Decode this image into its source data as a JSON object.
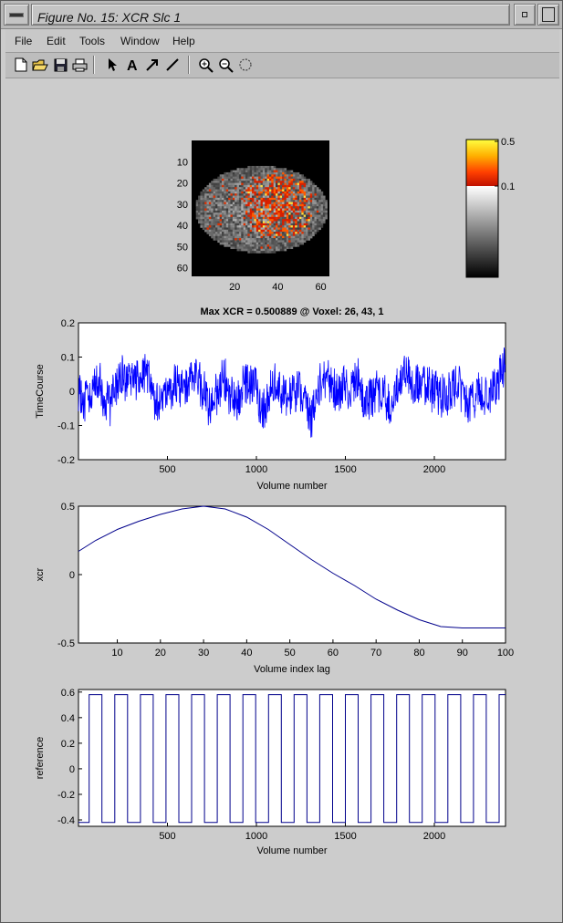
{
  "window": {
    "title": "Figure No. 15: XCR Slc 1"
  },
  "menu": {
    "file": "File",
    "edit": "Edit",
    "tools": "Tools",
    "window": "Window",
    "help": "Help"
  },
  "toolbar": {
    "icons": [
      "new-file-icon",
      "open-folder-icon",
      "save-icon",
      "print-icon",
      "arrow-select-icon",
      "text-tool-icon",
      "arrow-draw-icon",
      "line-draw-icon",
      "zoom-in-icon",
      "zoom-out-icon",
      "rotate-icon"
    ]
  },
  "brain_image": {
    "y_ticks": [
      "10",
      "20",
      "30",
      "40",
      "50",
      "60"
    ],
    "x_ticks": [
      "20",
      "40",
      "60"
    ]
  },
  "colorbar": {
    "tick_top": "0.5",
    "tick_mid": "0.1"
  },
  "chart_data": [
    {
      "type": "line",
      "title": "Max XCR = 0.500889 @ Voxel: 26, 43, 1",
      "xlabel": "Volume number",
      "ylabel": "TimeCourse",
      "xlim": [
        0,
        2400
      ],
      "ylim": [
        -0.2,
        0.2
      ],
      "x_ticks": [
        500,
        1000,
        1500,
        2000
      ],
      "y_ticks": [
        "0.2",
        "0.1",
        "0",
        "-0.1",
        "-0.2"
      ],
      "series": [
        {
          "values_note": "",
          "color": "#0000ff"
        }
      ]
    },
    {
      "type": "line",
      "xlabel": "Volume index lag",
      "ylabel": "xcr",
      "xlim": [
        1,
        100
      ],
      "ylim": [
        -0.5,
        0.5
      ],
      "x_ticks": [
        10,
        20,
        30,
        40,
        50,
        60,
        70,
        80,
        90,
        100
      ],
      "y_ticks": [
        "0.5",
        "0",
        "-0.5"
      ],
      "x": [
        1,
        5,
        10,
        15,
        20,
        25,
        30,
        35,
        40,
        45,
        50,
        55,
        60,
        65,
        70,
        75,
        80,
        85,
        90,
        95,
        100
      ],
      "y": [
        0.17,
        0.25,
        0.33,
        0.39,
        0.44,
        0.48,
        0.5,
        0.48,
        0.42,
        0.33,
        0.22,
        0.11,
        0.01,
        -0.08,
        -0.18,
        -0.26,
        -0.33,
        -0.38,
        -0.39,
        -0.39,
        -0.39
      ],
      "color": "#00008b"
    },
    {
      "type": "line",
      "xlabel": "Volume number",
      "ylabel": "reference",
      "xlim": [
        0,
        2400
      ],
      "ylim": [
        -0.45,
        0.62
      ],
      "x_ticks": [
        500,
        1000,
        1500,
        2000
      ],
      "y_ticks": [
        "0.6",
        "0.4",
        "0.2",
        "0",
        "-0.2",
        "-0.4"
      ],
      "high": 0.58,
      "low": -0.42,
      "period": 144,
      "start_low_until": 60,
      "color": "#00008b"
    }
  ]
}
